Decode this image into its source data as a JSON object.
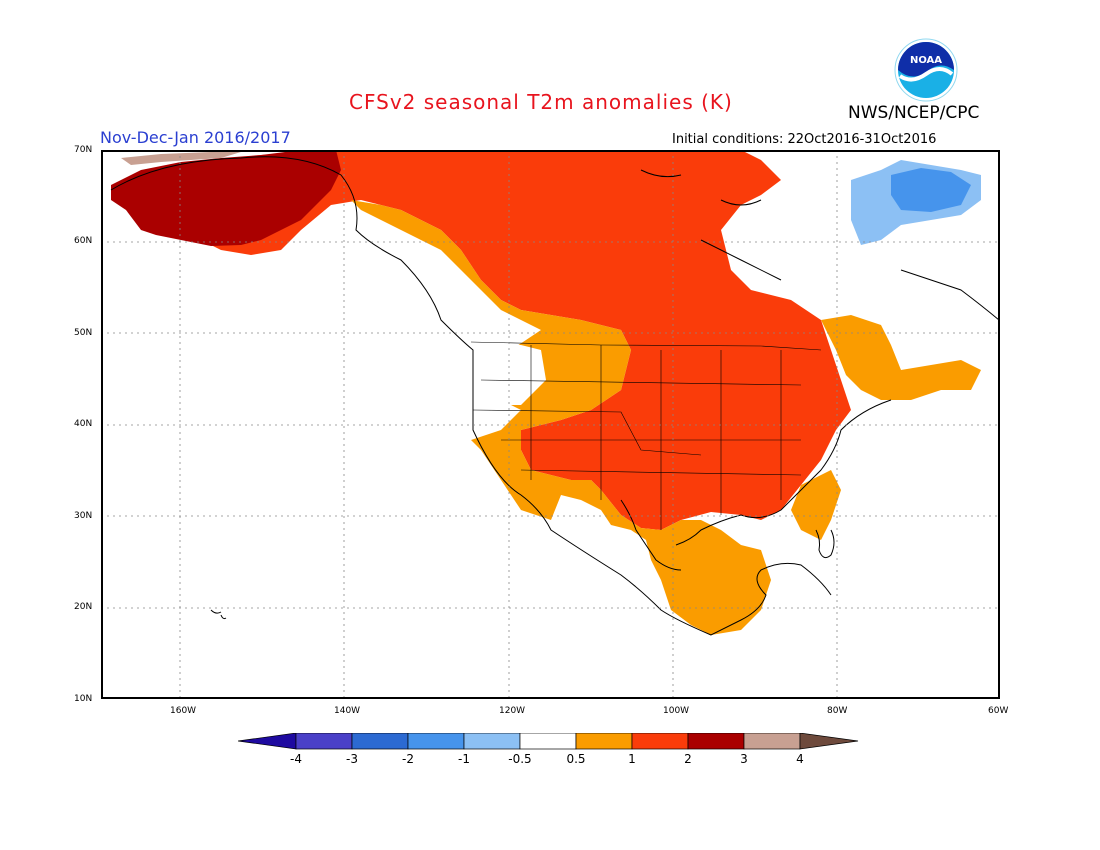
{
  "title": "CFSv2 seasonal T2m anomalies (K)",
  "org_label": "NWS/NCEP/CPC",
  "logo_text": "NOAA",
  "period": "Nov-Dec-Jan 2016/2017",
  "initial_conditions": "Initial conditions: 22Oct2016-31Oct2016",
  "lat_labels": [
    "70N",
    "60N",
    "50N",
    "40N",
    "30N",
    "20N",
    "10N"
  ],
  "lon_labels": [
    "160W",
    "140W",
    "120W",
    "100W",
    "80W",
    "60W"
  ],
  "colorbar": {
    "labels": [
      "-4",
      "-3",
      "-2",
      "-1",
      "-0.5",
      "0.5",
      "1",
      "2",
      "3",
      "4"
    ],
    "colors": [
      "#1e0aa0",
      "#4a40c8",
      "#2c6ad2",
      "#4694ec",
      "#8cc0f4",
      "#ffffff",
      "#fa9c00",
      "#fa3c0a",
      "#aa0000",
      "#c8a092",
      "#6e4a3c"
    ]
  },
  "regions": [
    {
      "name": "alaska-interior",
      "anomaly_bin": "2 to 3",
      "color": "#aa0000"
    },
    {
      "name": "canada-central",
      "anomaly_bin": "1 to 2",
      "color": "#fa3c0a"
    },
    {
      "name": "central-eastern-us",
      "anomaly_bin": "1 to 2",
      "color": "#fa3c0a"
    },
    {
      "name": "western-us-mexico",
      "anomaly_bin": "0.5 to 1",
      "color": "#fa9c00"
    },
    {
      "name": "pacific-northwest",
      "anomaly_bin": "-0.5 to 0.5",
      "color": "#ffffff"
    },
    {
      "name": "greenland-baffin",
      "anomaly_bin": "-1 to -0.5",
      "color": "#8cc0f4"
    }
  ]
}
